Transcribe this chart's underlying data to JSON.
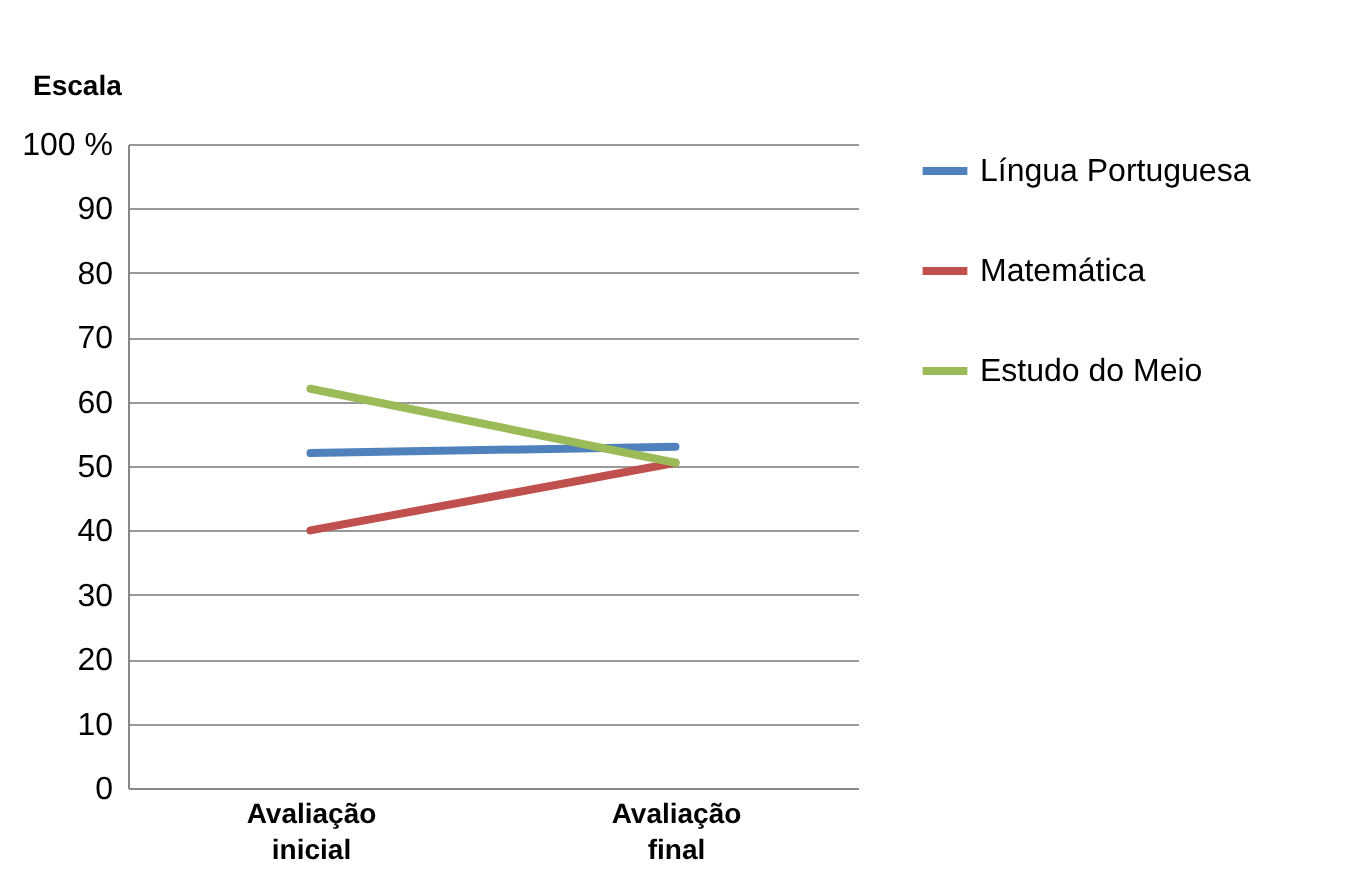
{
  "chart_data": {
    "type": "line",
    "ylabel": "Escala",
    "categories": [
      "Avaliação inicial",
      "Avaliação final"
    ],
    "series": [
      {
        "name": "Língua Portuguesa",
        "color": "#4f81bd",
        "values": [
          52,
          53
        ]
      },
      {
        "name": "Matemática",
        "color": "#c0504d",
        "values": [
          40,
          50.5
        ]
      },
      {
        "name": "Estudo do Meio",
        "color": "#9bbb59",
        "values": [
          62,
          50.5
        ]
      }
    ],
    "ylim": [
      0,
      100
    ],
    "yticks": [
      0,
      10,
      20,
      30,
      40,
      50,
      60,
      70,
      80,
      90,
      {
        "value": 100,
        "label": "100 %"
      }
    ],
    "grid": "y",
    "legend": "right",
    "marker": "none",
    "line_style": "solid"
  }
}
